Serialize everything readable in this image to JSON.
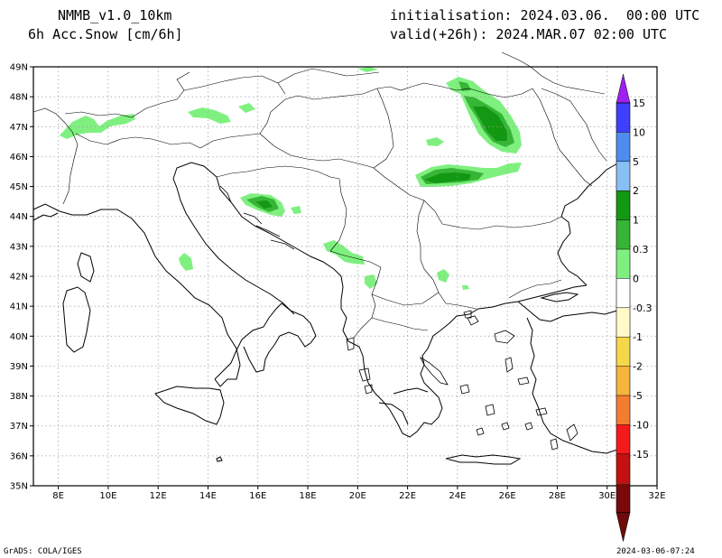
{
  "header": {
    "model": "NMMB_v1.0_10km",
    "variable": "6h Acc.Snow [cm/6h]",
    "init": "initialisation: 2024.03.06.  00:00 UTC",
    "valid": "valid(+26h): 2024.MAR.07 02:00 UTC"
  },
  "footer": {
    "credit": "GrADS: COLA/IGES",
    "timestamp": "2024-03-06-07:24"
  },
  "map": {
    "lon_min": 7,
    "lon_max": 32,
    "lat_min": 35,
    "lat_max": 49,
    "lon_ticks": [
      "8E",
      "10E",
      "12E",
      "14E",
      "16E",
      "18E",
      "20E",
      "22E",
      "24E",
      "26E",
      "28E",
      "30E",
      "32E"
    ],
    "lat_ticks": [
      "35N",
      "36N",
      "37N",
      "38N",
      "39N",
      "40N",
      "41N",
      "42N",
      "43N",
      "44N",
      "45N",
      "46N",
      "47N",
      "48N",
      "49N"
    ]
  },
  "colorbar": {
    "labels": [
      "15",
      "10",
      "5",
      "2",
      "1",
      "0.3",
      "0",
      "-0.3",
      "-1",
      "-2",
      "-5",
      "-10",
      "-15"
    ],
    "colors": [
      "#3f3fff",
      "#4f8cf0",
      "#88bff5",
      "#129812",
      "#36b536",
      "#7ff07f",
      "#ffffff",
      "#fffac8",
      "#f5d84a",
      "#f5b43c",
      "#f47c30",
      "#f51a1a",
      "#c41010",
      "#7a0a0a"
    ],
    "top_color": "#a020f0",
    "bottom_color": "#6e0a0a"
  },
  "snow_colors": {
    "light": "#7ff07f",
    "mid": "#36b536",
    "heavy": "#129812"
  }
}
